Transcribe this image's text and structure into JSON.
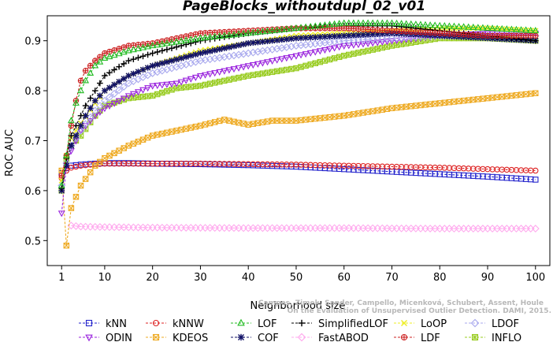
{
  "chart_data": {
    "type": "line",
    "title": "PageBlocks_withoutdupl_02_v01",
    "xlabel": "Neighborhood size",
    "ylabel": "ROC AUC",
    "xlim": [
      1,
      100
    ],
    "ylim": [
      0.45,
      0.95
    ],
    "x_ticks": [
      1,
      10,
      20,
      30,
      40,
      50,
      60,
      70,
      80,
      90,
      100
    ],
    "y_ticks": [
      0.5,
      0.6,
      0.7,
      0.8,
      0.9
    ],
    "grid": false,
    "legend_position": "bottom",
    "watermark": [
      "Campos, Zimek, Sander, Campello, Micenková, Schubert, Assent, Houle",
      "On the Evaluation of Unsupervised Outlier Detection. DAMI, 2015."
    ],
    "series": [
      {
        "name": "kNN",
        "color": "#2222cc",
        "marker": "square",
        "points": [
          [
            1,
            0.635
          ],
          [
            2,
            0.645
          ],
          [
            3,
            0.65
          ],
          [
            5,
            0.652
          ],
          [
            8,
            0.654
          ],
          [
            10,
            0.655
          ],
          [
            15,
            0.655
          ],
          [
            20,
            0.654
          ],
          [
            30,
            0.653
          ],
          [
            40,
            0.651
          ],
          [
            50,
            0.648
          ],
          [
            60,
            0.643
          ],
          [
            70,
            0.638
          ],
          [
            80,
            0.633
          ],
          [
            90,
            0.628
          ],
          [
            100,
            0.622
          ]
        ]
      },
      {
        "name": "kNNW",
        "color": "#dd2222",
        "marker": "circle",
        "points": [
          [
            1,
            0.625
          ],
          [
            2,
            0.64
          ],
          [
            3,
            0.646
          ],
          [
            5,
            0.65
          ],
          [
            8,
            0.653
          ],
          [
            10,
            0.654
          ],
          [
            20,
            0.654
          ],
          [
            30,
            0.654
          ],
          [
            40,
            0.653
          ],
          [
            50,
            0.652
          ],
          [
            60,
            0.65
          ],
          [
            70,
            0.648
          ],
          [
            80,
            0.646
          ],
          [
            90,
            0.643
          ],
          [
            100,
            0.64
          ]
        ]
      },
      {
        "name": "LOF",
        "color": "#22bb22",
        "marker": "triangle-up",
        "points": [
          [
            1,
            0.61
          ],
          [
            2,
            0.67
          ],
          [
            3,
            0.74
          ],
          [
            4,
            0.775
          ],
          [
            5,
            0.8
          ],
          [
            6,
            0.82
          ],
          [
            8,
            0.85
          ],
          [
            10,
            0.865
          ],
          [
            15,
            0.88
          ],
          [
            20,
            0.89
          ],
          [
            30,
            0.905
          ],
          [
            40,
            0.915
          ],
          [
            50,
            0.925
          ],
          [
            60,
            0.935
          ],
          [
            70,
            0.935
          ],
          [
            80,
            0.93
          ],
          [
            90,
            0.925
          ],
          [
            100,
            0.92
          ]
        ]
      },
      {
        "name": "SimplifiedLOF",
        "color": "#000000",
        "marker": "plus",
        "points": [
          [
            1,
            0.605
          ],
          [
            2,
            0.665
          ],
          [
            3,
            0.71
          ],
          [
            4,
            0.73
          ],
          [
            5,
            0.75
          ],
          [
            6,
            0.77
          ],
          [
            8,
            0.8
          ],
          [
            10,
            0.83
          ],
          [
            15,
            0.86
          ],
          [
            20,
            0.875
          ],
          [
            30,
            0.9
          ],
          [
            40,
            0.915
          ],
          [
            50,
            0.925
          ],
          [
            60,
            0.93
          ],
          [
            70,
            0.93
          ],
          [
            80,
            0.92
          ],
          [
            90,
            0.91
          ],
          [
            100,
            0.9
          ]
        ]
      },
      {
        "name": "LoOP",
        "color": "#eeee22",
        "marker": "x",
        "points": [
          [
            1,
            0.62
          ],
          [
            2,
            0.67
          ],
          [
            3,
            0.705
          ],
          [
            5,
            0.735
          ],
          [
            8,
            0.775
          ],
          [
            10,
            0.8
          ],
          [
            15,
            0.83
          ],
          [
            20,
            0.85
          ],
          [
            30,
            0.88
          ],
          [
            40,
            0.895
          ],
          [
            50,
            0.91
          ],
          [
            60,
            0.915
          ],
          [
            70,
            0.92
          ],
          [
            80,
            0.925
          ],
          [
            90,
            0.925
          ],
          [
            100,
            0.92
          ]
        ]
      },
      {
        "name": "LDOF",
        "color": "#aaaaee",
        "marker": "diamond",
        "points": [
          [
            1,
            0.61
          ],
          [
            2,
            0.655
          ],
          [
            3,
            0.69
          ],
          [
            5,
            0.72
          ],
          [
            8,
            0.76
          ],
          [
            10,
            0.78
          ],
          [
            15,
            0.815
          ],
          [
            20,
            0.835
          ],
          [
            30,
            0.86
          ],
          [
            40,
            0.875
          ],
          [
            50,
            0.89
          ],
          [
            60,
            0.9
          ],
          [
            70,
            0.905
          ],
          [
            80,
            0.91
          ],
          [
            90,
            0.91
          ],
          [
            100,
            0.91
          ]
        ]
      },
      {
        "name": "ODIN",
        "color": "#9922dd",
        "marker": "triangle-down",
        "points": [
          [
            1,
            0.555
          ],
          [
            2,
            0.65
          ],
          [
            3,
            0.68
          ],
          [
            4,
            0.7
          ],
          [
            5,
            0.72
          ],
          [
            8,
            0.75
          ],
          [
            10,
            0.765
          ],
          [
            15,
            0.79
          ],
          [
            20,
            0.81
          ],
          [
            25,
            0.815
          ],
          [
            30,
            0.83
          ],
          [
            40,
            0.85
          ],
          [
            50,
            0.87
          ],
          [
            60,
            0.89
          ],
          [
            70,
            0.9
          ],
          [
            80,
            0.91
          ],
          [
            90,
            0.915
          ],
          [
            100,
            0.915
          ]
        ]
      },
      {
        "name": "KDEOS",
        "color": "#eeaa22",
        "marker": "square-x",
        "points": [
          [
            1,
            0.64
          ],
          [
            2,
            0.49
          ],
          [
            3,
            0.565
          ],
          [
            5,
            0.61
          ],
          [
            8,
            0.65
          ],
          [
            10,
            0.665
          ],
          [
            15,
            0.69
          ],
          [
            20,
            0.71
          ],
          [
            30,
            0.73
          ],
          [
            35,
            0.742
          ],
          [
            40,
            0.732
          ],
          [
            45,
            0.74
          ],
          [
            50,
            0.74
          ],
          [
            60,
            0.75
          ],
          [
            70,
            0.765
          ],
          [
            80,
            0.775
          ],
          [
            90,
            0.785
          ],
          [
            100,
            0.795
          ]
        ]
      },
      {
        "name": "COF",
        "color": "#111166",
        "marker": "asterisk",
        "points": [
          [
            1,
            0.6
          ],
          [
            2,
            0.65
          ],
          [
            3,
            0.69
          ],
          [
            4,
            0.71
          ],
          [
            5,
            0.73
          ],
          [
            6,
            0.75
          ],
          [
            8,
            0.78
          ],
          [
            10,
            0.8
          ],
          [
            15,
            0.83
          ],
          [
            20,
            0.85
          ],
          [
            30,
            0.875
          ],
          [
            40,
            0.895
          ],
          [
            50,
            0.905
          ],
          [
            60,
            0.91
          ],
          [
            70,
            0.915
          ],
          [
            80,
            0.91
          ],
          [
            90,
            0.905
          ],
          [
            100,
            0.9
          ]
        ]
      },
      {
        "name": "FastABOD",
        "color": "#ffaaee",
        "marker": "diamond",
        "points": [
          [
            3,
            0.53
          ],
          [
            5,
            0.528
          ],
          [
            10,
            0.527
          ],
          [
            20,
            0.526
          ],
          [
            40,
            0.525
          ],
          [
            60,
            0.525
          ],
          [
            80,
            0.524
          ],
          [
            100,
            0.524
          ]
        ]
      },
      {
        "name": "LDF",
        "color": "#cc2222",
        "marker": "circle-plus",
        "points": [
          [
            1,
            0.63
          ],
          [
            2,
            0.67
          ],
          [
            3,
            0.73
          ],
          [
            4,
            0.78
          ],
          [
            5,
            0.82
          ],
          [
            6,
            0.84
          ],
          [
            8,
            0.86
          ],
          [
            10,
            0.875
          ],
          [
            15,
            0.89
          ],
          [
            20,
            0.895
          ],
          [
            30,
            0.915
          ],
          [
            40,
            0.92
          ],
          [
            50,
            0.925
          ],
          [
            60,
            0.925
          ],
          [
            70,
            0.92
          ],
          [
            80,
            0.915
          ],
          [
            90,
            0.91
          ],
          [
            100,
            0.91
          ]
        ]
      },
      {
        "name": "INFLO",
        "color": "#99cc22",
        "marker": "star-square",
        "points": [
          [
            1,
            0.6
          ],
          [
            2,
            0.66
          ],
          [
            3,
            0.69
          ],
          [
            5,
            0.71
          ],
          [
            8,
            0.75
          ],
          [
            10,
            0.77
          ],
          [
            15,
            0.785
          ],
          [
            20,
            0.79
          ],
          [
            25,
            0.805
          ],
          [
            30,
            0.81
          ],
          [
            40,
            0.83
          ],
          [
            50,
            0.845
          ],
          [
            60,
            0.87
          ],
          [
            70,
            0.89
          ],
          [
            80,
            0.905
          ],
          [
            90,
            0.905
          ],
          [
            100,
            0.9
          ]
        ]
      }
    ],
    "legend_order": [
      [
        "kNN",
        "kNNW",
        "LOF",
        "SimplifiedLOF",
        "LoOP",
        "LDOF"
      ],
      [
        "ODIN",
        "KDEOS",
        "COF",
        "FastABOD",
        "LDF",
        "INFLO"
      ]
    ]
  }
}
